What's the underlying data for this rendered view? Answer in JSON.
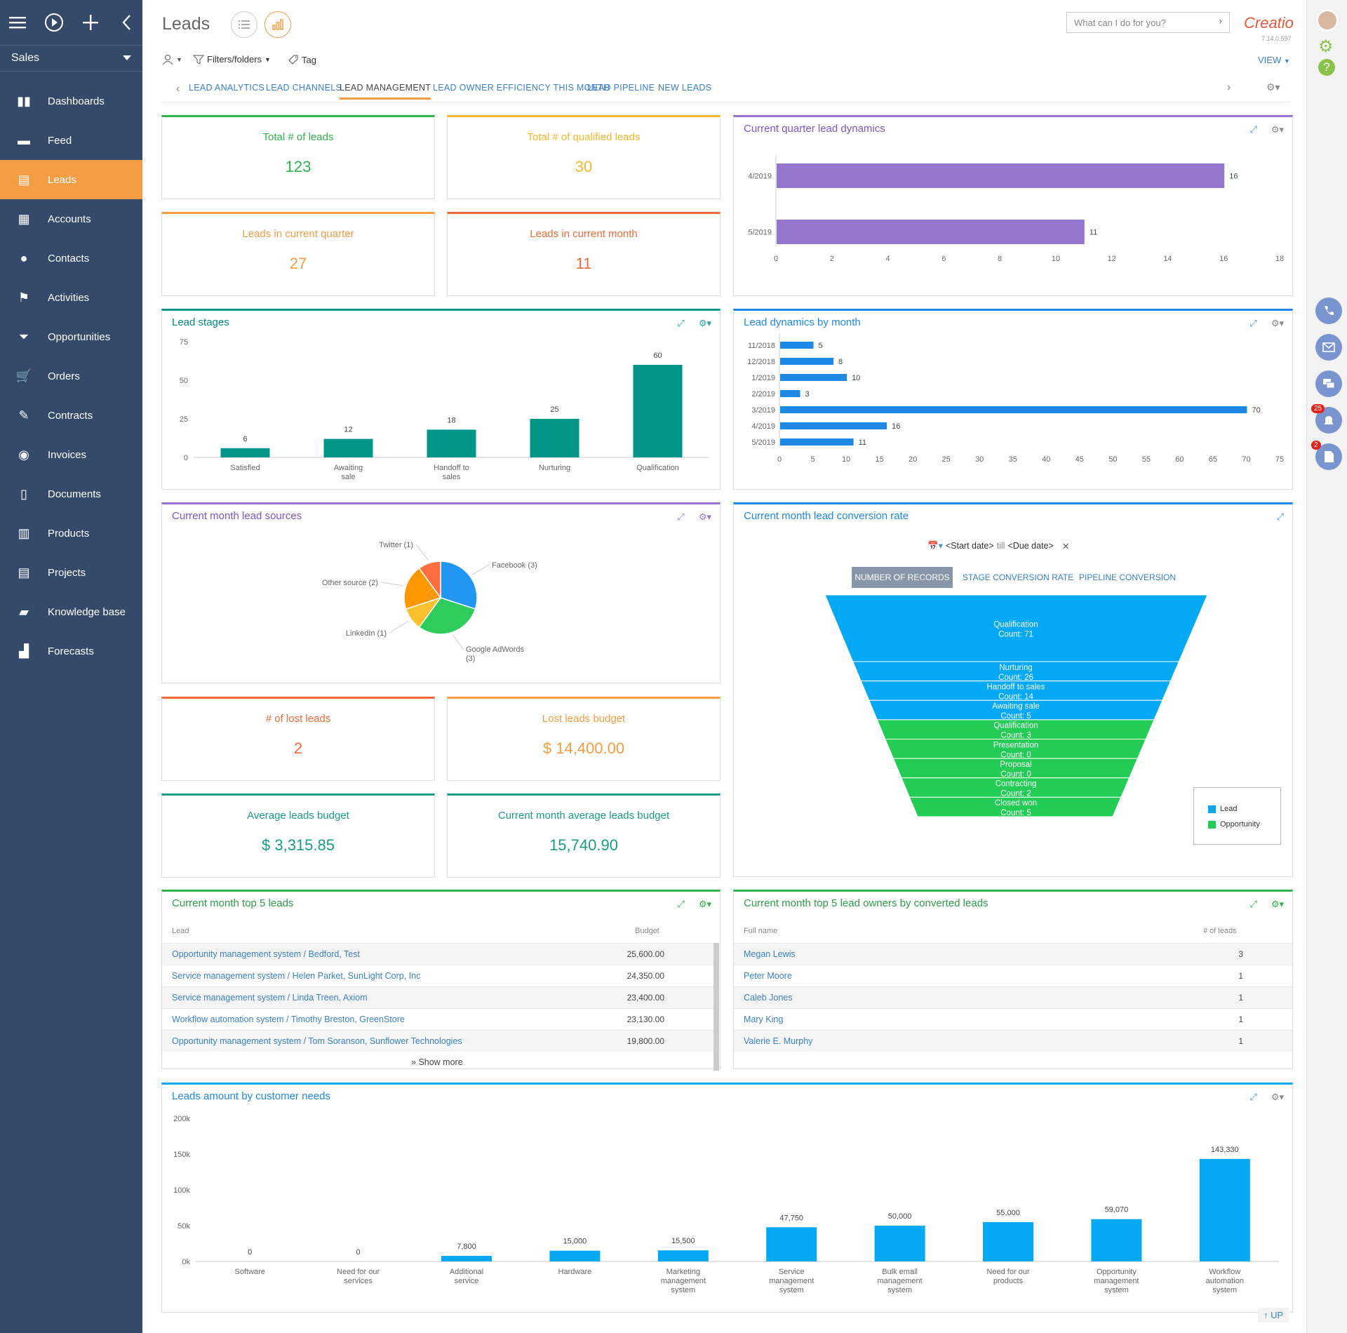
{
  "sidebar": {
    "workspace": "Sales",
    "items": [
      {
        "label": "Dashboards",
        "icon": "bar-chart-icon"
      },
      {
        "label": "Feed",
        "icon": "chat-bubbles-icon"
      },
      {
        "label": "Leads",
        "icon": "leads-icon",
        "active": true
      },
      {
        "label": "Accounts",
        "icon": "building-icon"
      },
      {
        "label": "Contacts",
        "icon": "person-icon"
      },
      {
        "label": "Activities",
        "icon": "flag-icon"
      },
      {
        "label": "Opportunities",
        "icon": "funnel-icon"
      },
      {
        "label": "Orders",
        "icon": "cart-icon"
      },
      {
        "label": "Contracts",
        "icon": "contract-icon"
      },
      {
        "label": "Invoices",
        "icon": "coins-icon"
      },
      {
        "label": "Documents",
        "icon": "document-icon"
      },
      {
        "label": "Products",
        "icon": "products-icon"
      },
      {
        "label": "Projects",
        "icon": "projects-icon"
      },
      {
        "label": "Knowledge base",
        "icon": "book-icon"
      },
      {
        "label": "Forecasts",
        "icon": "forecast-icon"
      }
    ]
  },
  "header": {
    "title": "Leads",
    "search_placeholder": "What can I do for you?",
    "logo": "Creatio",
    "version": "7.14.0.597",
    "toolbar": {
      "filters": "Filters/folders",
      "tag": "Tag",
      "view": "VIEW"
    },
    "tabs": [
      "LEAD ANALYTICS",
      "LEAD CHANNELS",
      "LEAD MANAGEMENT",
      "LEAD OWNER EFFICIENCY THIS MONTH",
      "LEAD PIPELINE",
      "NEW LEADS"
    ],
    "active_tab": "LEAD MANAGEMENT"
  },
  "rail": {
    "notifications_badge": "25",
    "documents_badge": "2"
  },
  "kpis": {
    "total_leads": {
      "label": "Total # of leads",
      "value": "123",
      "color": "#2db34a"
    },
    "qualified": {
      "label": "Total # of qualified leads",
      "value": "30",
      "color": "#f5b82a"
    },
    "quarter": {
      "label": "Leads in current quarter",
      "value": "27",
      "color": "#f59d43"
    },
    "month": {
      "label": "Leads in current month",
      "value": "11",
      "color": "#ef6b3a"
    },
    "lost": {
      "label": "# of lost leads",
      "value": "2",
      "color": "#ef6b3a"
    },
    "lost_budget": {
      "label": "Lost leads budget",
      "value": "$ 14,400.00",
      "color": "#f59d43"
    },
    "avg_budget": {
      "label": "Average leads budget",
      "value": "$ 3,315.85",
      "color": "#1a9c87"
    },
    "month_avg_budget": {
      "label": "Current month average leads budget",
      "value": "15,740.90",
      "color": "#1a9c87"
    }
  },
  "widgets": {
    "quarter_dynamics": "Current quarter lead dynamics",
    "lead_stages": "Lead stages",
    "month_dynamics": "Lead dynamics by month",
    "lead_sources": "Current month lead sources",
    "conversion": "Current month lead conversion rate",
    "top_leads": "Current month top 5 leads",
    "top_owners": "Current month top 5 lead owners by converted leads",
    "customer_needs": "Leads amount by customer needs"
  },
  "conversion": {
    "date_from": "<Start date>",
    "till": "till",
    "date_to": "<Due date>",
    "tabs": [
      "NUMBER OF RECORDS",
      "STAGE CONVERSION RATE",
      "PIPELINE CONVERSION"
    ],
    "legend": [
      "Lead",
      "Opportunity"
    ]
  },
  "top_leads": {
    "headers": [
      "Lead",
      "Budget"
    ],
    "rows": [
      {
        "lead": "Opportunity management system / Bedford, Test",
        "budget": "25,600.00"
      },
      {
        "lead": "Service management system / Helen Parket, SunLight Corp, Inc",
        "budget": "24,350.00"
      },
      {
        "lead": "Service management system / Linda Treen, Axiom",
        "budget": "23,400.00"
      },
      {
        "lead": "Workflow automation system / Timothy Breston, GreenStore",
        "budget": "23,130.00"
      },
      {
        "lead": "Opportunity management system / Tom Soranson, Sunflower Technologies",
        "budget": "19,800.00"
      }
    ],
    "show_more": "Show more"
  },
  "top_owners": {
    "headers": [
      "Full name",
      "# of leads"
    ],
    "rows": [
      {
        "name": "Megan Lewis",
        "count": "3"
      },
      {
        "name": "Peter Moore",
        "count": "1"
      },
      {
        "name": "Caleb Jones",
        "count": "1"
      },
      {
        "name": "Mary King",
        "count": "1"
      },
      {
        "name": "Valerie E. Murphy",
        "count": "1"
      }
    ]
  },
  "footer": {
    "up": "UP"
  },
  "chart_data": [
    {
      "type": "bar",
      "orientation": "horizontal",
      "title": "Current quarter lead dynamics",
      "categories": [
        "4/2019",
        "5/2019"
      ],
      "values": [
        16,
        11
      ],
      "xlim": [
        0,
        18
      ],
      "xticks": [
        0,
        2,
        4,
        6,
        8,
        10,
        12,
        14,
        16,
        18
      ],
      "color": "#9575cd"
    },
    {
      "type": "bar",
      "title": "Lead stages",
      "categories": [
        "Satisfied",
        "Awaiting sale",
        "Handoff to sales",
        "Nurturing",
        "Qualification"
      ],
      "values": [
        6,
        12,
        18,
        25,
        60
      ],
      "ylim": [
        0,
        75
      ],
      "yticks": [
        0,
        25,
        50,
        75
      ],
      "color": "#009688"
    },
    {
      "type": "bar",
      "orientation": "horizontal",
      "title": "Lead dynamics by month",
      "categories": [
        "11/2018",
        "12/2018",
        "1/2019",
        "2/2019",
        "3/2019",
        "4/2019",
        "5/2019"
      ],
      "values": [
        5,
        8,
        10,
        3,
        70,
        16,
        11
      ],
      "xlim": [
        0,
        75
      ],
      "xticks": [
        0,
        5,
        10,
        15,
        20,
        25,
        30,
        35,
        40,
        45,
        50,
        55,
        60,
        65,
        70,
        75
      ],
      "color": "#1e88e5"
    },
    {
      "type": "pie",
      "title": "Current month lead sources",
      "labels": [
        "Facebook (3)",
        "Google AdWords (3)",
        "LinkedIn (1)",
        "Other source (2)",
        "Twitter (1)"
      ],
      "values": [
        3,
        3,
        1,
        2,
        1
      ],
      "colors": [
        "#2196f3",
        "#2ecc5a",
        "#fbc02d",
        "#ff9800",
        "#ff6e40"
      ]
    },
    {
      "type": "funnel",
      "title": "Current month lead conversion rate",
      "stages": [
        {
          "name": "Qualification",
          "count": 71,
          "group": "Lead"
        },
        {
          "name": "Nurturing",
          "count": 26,
          "group": "Lead"
        },
        {
          "name": "Handoff to sales",
          "count": 14,
          "group": "Lead"
        },
        {
          "name": "Awaiting sale",
          "count": 5,
          "group": "Lead"
        },
        {
          "name": "Qualification",
          "count": 3,
          "group": "Opportunity"
        },
        {
          "name": "Presentation",
          "count": 0,
          "group": "Opportunity"
        },
        {
          "name": "Proposal",
          "count": 0,
          "group": "Opportunity"
        },
        {
          "name": "Contracting",
          "count": 2,
          "group": "Opportunity"
        },
        {
          "name": "Closed won",
          "count": 5,
          "group": "Opportunity"
        }
      ],
      "count_label": "Count:",
      "colors": {
        "Lead": "#03a9f4",
        "Opportunity": "#22cc55"
      }
    },
    {
      "type": "bar",
      "title": "Leads amount by customer needs",
      "categories": [
        "Software",
        "Need for our services",
        "Additional service",
        "Hardware",
        "Marketing management system",
        "Service management system",
        "Bulk email management system",
        "Need for our products",
        "Opportunity management system",
        "Workflow automation system"
      ],
      "values": [
        0,
        0,
        7800,
        15000,
        15500,
        47750,
        50000,
        55000,
        59070,
        143330
      ],
      "value_labels": [
        "0",
        "0",
        "7,800",
        "15,000",
        "15,500",
        "47,750",
        "50,000",
        "55,000",
        "59,070",
        "143,330"
      ],
      "ylim": [
        0,
        200000
      ],
      "yticks": [
        "0k",
        "50k",
        "100k",
        "150k",
        "200k"
      ],
      "color": "#03a9f4"
    }
  ]
}
